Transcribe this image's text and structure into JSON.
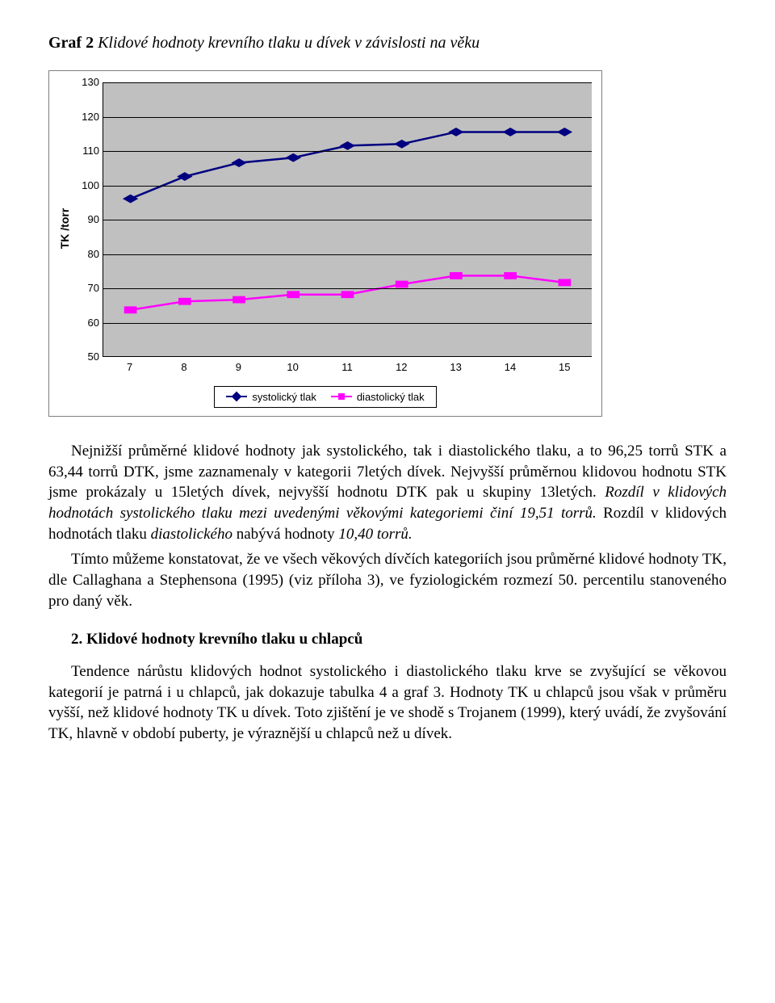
{
  "title": {
    "bold": "Graf 2",
    "italic": " Klidové hodnoty krevního tlaku u dívek v závislosti na věku"
  },
  "chart": {
    "type": "line",
    "y_label": "TK /torr",
    "ylim": [
      50,
      130
    ],
    "ytick_step": 10,
    "yticks": [
      "50",
      "60",
      "70",
      "80",
      "90",
      "100",
      "110",
      "120",
      "130"
    ],
    "x_categories": [
      "7",
      "8",
      "9",
      "10",
      "11",
      "12",
      "13",
      "14",
      "15"
    ],
    "background_color": "#c0c0c0",
    "grid_color": "#000000",
    "axis_color": "#000000",
    "label_fontsize": 13,
    "y_title_fontsize": 14,
    "series": [
      {
        "name": "systolický tlak",
        "color": "#000080",
        "marker": "diamond",
        "marker_size": 9,
        "line_width": 2.5,
        "values": [
          96.0,
          102.5,
          106.5,
          108.0,
          111.5,
          112.0,
          115.5,
          115.5,
          115.5
        ]
      },
      {
        "name": "diastolický tlak",
        "color": "#ff00ff",
        "marker": "square",
        "marker_size": 8,
        "line_width": 2.5,
        "values": [
          63.5,
          66.0,
          66.5,
          68.0,
          68.0,
          71.0,
          73.5,
          73.5,
          71.5
        ]
      }
    ],
    "legend": {
      "border_color": "#000000",
      "background": "#ffffff",
      "items": [
        "systolický tlak",
        "diastolický tlak"
      ]
    }
  },
  "body": {
    "p1a": "Nejnižší průměrné klidové hodnoty jak systolického, tak i diastolického tlaku, a to 96,25 torrů STK a 63,44 torrů DTK, jsme zaznamenaly v kategorii 7letých dívek. Nejvyšší průměrnou klidovou hodnotu STK jsme prokázaly u 15letých dívek, nejvyšší hodnotu DTK pak u skupiny 13letých. ",
    "p1b_italic": "Rozdíl v klidových hodnotách systolického tlaku mezi uvedenými věkovými kategoriemi činí 19,51 torrů.",
    "p1c": " Rozdíl v klidových hodnotách tlaku ",
    "p1d_italic": "diastolického",
    "p1e": " nabývá hodnoty ",
    "p1f_italic": "10,40 torrů.",
    "p2": "Tímto můžeme konstatovat, že ve všech věkových dívčích kategoriích jsou průměrné klidové hodnoty TK, dle Callaghana a Stephensona (1995) (viz příloha 3), ve fyziologickém rozmezí 50. percentilu stanoveného pro daný věk.",
    "section2_head": "2.  Klidové hodnoty krevního tlaku u chlapců",
    "p3": "Tendence nárůstu klidových hodnot systolického i diastolického tlaku krve se zvyšující se věkovou kategorií je patrná i u chlapců, jak dokazuje tabulka 4 a graf 3. Hodnoty TK u chlapců jsou však v průměru vyšší, než klidové hodnoty TK u dívek. Toto zjištění je ve shodě s Trojanem (1999), který uvádí, že zvyšování TK, hlavně v období puberty, je výraznější u chlapců než u dívek."
  }
}
